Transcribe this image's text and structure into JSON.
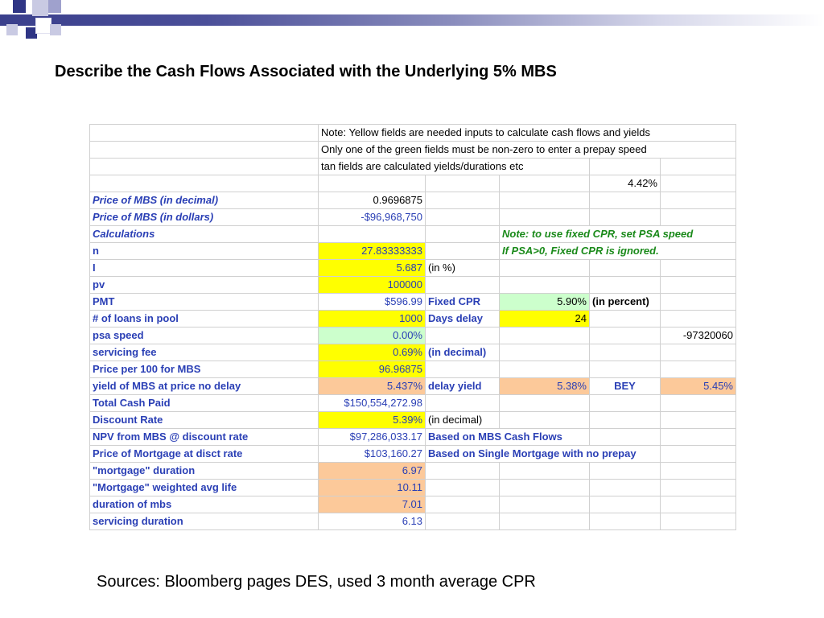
{
  "title": "Describe the Cash Flows Associated with the Underlying 5% MBS",
  "sources": "Sources: Bloomberg pages DES, used 3 month average CPR",
  "notes": {
    "line1": "Note: Yellow fields are needed inputs to calculate cash flows and yields",
    "line2": "Only one of the green fields must be non-zero to enter a prepay speed",
    "line3": "tan fields are calculated yields/durations etc",
    "pct_442": "4.42%",
    "green_note1": "Note: to use fixed CPR, set PSA speed",
    "green_note2": "If PSA>0, Fixed CPR is ignored."
  },
  "rows": [
    {
      "label": "Price of MBS (in decimal)",
      "value": "0.9696875"
    },
    {
      "label": "Price of MBS (in dollars)",
      "value": "-$96,968,750"
    },
    {
      "label": "Calculations",
      "value": ""
    },
    {
      "label": "n",
      "value": "27.83333333"
    },
    {
      "label": "I",
      "value": "5.687",
      "unit": "(in %)"
    },
    {
      "label": "pv",
      "value": "100000"
    },
    {
      "label": "PMT",
      "value": "$596.99",
      "c3": "Fixed CPR",
      "c4": "5.90%",
      "c5": "(in percent)"
    },
    {
      "label": "# of loans in pool",
      "value": "1000",
      "c3": "Days delay",
      "c4": "24"
    },
    {
      "label": "psa speed",
      "value": "0.00%",
      "c6": "-97320060"
    },
    {
      "label": "servicing fee",
      "value": "0.69%",
      "c3": "(in decimal)"
    },
    {
      "label": "Price  per 100 for MBS",
      "value": "96.96875"
    },
    {
      "label": "yield of MBS at price no delay",
      "value": "5.437%",
      "c3": "delay yield",
      "c4": "5.38%",
      "c5": "BEY",
      "c6": "5.45%"
    },
    {
      "label": "Total Cash Paid",
      "value": "$150,554,272.98"
    },
    {
      "label": "Discount Rate",
      "value": "5.39%",
      "c3": "(in decimal)"
    },
    {
      "label": "NPV from MBS @ discount rate",
      "value": "$97,286,033.17",
      "c3": "Based on MBS Cash Flows"
    },
    {
      "label": "Price of Mortgage at disct rate",
      "value": "$103,160.27",
      "c3": "Based on Single Mortgage with no prepay"
    },
    {
      "label": "\"mortgage\" duration",
      "value": "6.97"
    },
    {
      "label": "\"Mortgage\" weighted avg life",
      "value": "10.11"
    },
    {
      "label": "duration of mbs",
      "value": "7.01"
    },
    {
      "label": "servicing duration",
      "value": "6.13"
    }
  ]
}
